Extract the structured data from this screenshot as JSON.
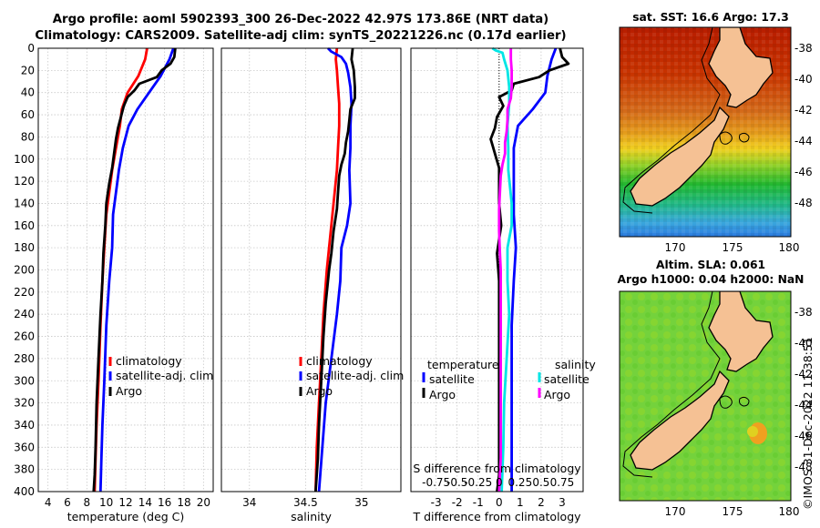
{
  "header": {
    "line1": "Argo profile: aoml 5902393_300 26-Dec-2022 42.97S 173.86E (NRT data)",
    "line2": "Climatology: CARS2009. Satellite-adj clim: synTS_20221226.nc (0.17d earlier)"
  },
  "colors": {
    "climatology": "#ff0000",
    "satellite": "#0000ff",
    "argo": "#000000",
    "sal_satellite": "#00e5e5",
    "sal_argo": "#ff00ff",
    "land": "#f5c194"
  },
  "chart_data": [
    {
      "type": "line",
      "name": "temperature-profile",
      "xlabel": "temperature (deg C)",
      "xlim": [
        3,
        21
      ],
      "xticks": [
        4,
        6,
        8,
        10,
        12,
        14,
        16,
        18,
        20
      ],
      "ylim": [
        0,
        400
      ],
      "yticks": [
        0,
        20,
        40,
        60,
        80,
        100,
        120,
        140,
        160,
        180,
        200,
        220,
        240,
        260,
        280,
        300,
        320,
        340,
        360,
        380,
        400
      ],
      "grid": true,
      "legend": [
        "climatology",
        "satellite-adj. clim",
        "Argo"
      ],
      "series": [
        {
          "name": "climatology",
          "color": "#ff0000",
          "points": [
            [
              14.2,
              0
            ],
            [
              14.0,
              10
            ],
            [
              13.3,
              25
            ],
            [
              12.2,
              40
            ],
            [
              11.6,
              55
            ],
            [
              11.4,
              70
            ],
            [
              11.0,
              90
            ],
            [
              10.6,
              110
            ],
            [
              10.3,
              130
            ],
            [
              10.0,
              150
            ],
            [
              9.8,
              180
            ],
            [
              9.6,
              210
            ],
            [
              9.4,
              250
            ],
            [
              9.2,
              300
            ],
            [
              9.0,
              340
            ],
            [
              8.9,
              370
            ],
            [
              8.8,
              400
            ]
          ]
        },
        {
          "name": "satellite-adj. clim",
          "color": "#0000ff",
          "points": [
            [
              16.9,
              0
            ],
            [
              16.5,
              10
            ],
            [
              15.6,
              25
            ],
            [
              14.4,
              40
            ],
            [
              13.2,
              55
            ],
            [
              12.3,
              70
            ],
            [
              11.7,
              90
            ],
            [
              11.3,
              110
            ],
            [
              11.0,
              130
            ],
            [
              10.7,
              150
            ],
            [
              10.6,
              180
            ],
            [
              10.3,
              210
            ],
            [
              10.0,
              250
            ],
            [
              9.8,
              300
            ],
            [
              9.6,
              340
            ],
            [
              9.5,
              370
            ],
            [
              9.4,
              400
            ]
          ]
        },
        {
          "name": "Argo",
          "color": "#000000",
          "points": [
            [
              17.1,
              0
            ],
            [
              17.0,
              8
            ],
            [
              16.6,
              14
            ],
            [
              15.7,
              20
            ],
            [
              15.2,
              26
            ],
            [
              13.4,
              32
            ],
            [
              12.9,
              38
            ],
            [
              12.2,
              44
            ],
            [
              11.8,
              52
            ],
            [
              11.5,
              62
            ],
            [
              11.2,
              72
            ],
            [
              11.0,
              82
            ],
            [
              10.8,
              95
            ],
            [
              10.6,
              108
            ],
            [
              10.3,
              122
            ],
            [
              10.0,
              140
            ],
            [
              9.9,
              160
            ],
            [
              9.7,
              185
            ],
            [
              9.6,
              210
            ],
            [
              9.4,
              240
            ],
            [
              9.2,
              280
            ],
            [
              9.0,
              320
            ],
            [
              8.9,
              360
            ],
            [
              8.8,
              385
            ],
            [
              8.7,
              400
            ]
          ]
        }
      ]
    },
    {
      "type": "line",
      "name": "salinity-profile",
      "xlabel": "salinity",
      "xlim": [
        33.75,
        35.35
      ],
      "xticks": [
        34,
        34.5,
        35
      ],
      "ylim": [
        0,
        400
      ],
      "grid": true,
      "legend": [
        "climatology",
        "satellite-adj. clim",
        "Argo"
      ],
      "series": [
        {
          "name": "climatology",
          "color": "#ff0000",
          "points": [
            [
              34.78,
              0
            ],
            [
              34.77,
              10
            ],
            [
              34.78,
              20
            ],
            [
              34.79,
              35
            ],
            [
              34.8,
              50
            ],
            [
              34.8,
              70
            ],
            [
              34.79,
              90
            ],
            [
              34.78,
              110
            ],
            [
              34.75,
              140
            ],
            [
              34.72,
              170
            ],
            [
              34.69,
              200
            ],
            [
              34.66,
              240
            ],
            [
              34.64,
              280
            ],
            [
              34.62,
              320
            ],
            [
              34.6,
              360
            ],
            [
              34.59,
              400
            ]
          ]
        },
        {
          "name": "satellite-adj. clim",
          "color": "#0000ff",
          "points": [
            [
              34.7,
              0
            ],
            [
              34.73,
              3
            ],
            [
              34.82,
              8
            ],
            [
              34.86,
              14
            ],
            [
              34.88,
              22
            ],
            [
              34.9,
              35
            ],
            [
              34.91,
              50
            ],
            [
              34.9,
              70
            ],
            [
              34.9,
              90
            ],
            [
              34.89,
              110
            ],
            [
              34.9,
              140
            ],
            [
              34.87,
              160
            ],
            [
              34.82,
              180
            ],
            [
              34.81,
              210
            ],
            [
              34.78,
              240
            ],
            [
              34.73,
              280
            ],
            [
              34.68,
              320
            ],
            [
              34.65,
              360
            ],
            [
              34.62,
              400
            ]
          ]
        },
        {
          "name": "Argo",
          "color": "#000000",
          "points": [
            [
              34.92,
              0
            ],
            [
              34.91,
              10
            ],
            [
              34.93,
              20
            ],
            [
              34.94,
              35
            ],
            [
              34.94,
              45
            ],
            [
              34.9,
              55
            ],
            [
              34.89,
              65
            ],
            [
              34.88,
              75
            ],
            [
              34.86,
              85
            ],
            [
              34.85,
              95
            ],
            [
              34.82,
              105
            ],
            [
              34.8,
              115
            ],
            [
              34.79,
              130
            ],
            [
              34.78,
              145
            ],
            [
              34.75,
              165
            ],
            [
              34.73,
              185
            ],
            [
              34.71,
              200
            ],
            [
              34.68,
              230
            ],
            [
              34.66,
              260
            ],
            [
              34.64,
              300
            ],
            [
              34.62,
              340
            ],
            [
              34.61,
              370
            ],
            [
              34.59,
              400
            ]
          ]
        }
      ]
    },
    {
      "type": "line",
      "name": "difference-profile",
      "xlabel": "T difference from climatology",
      "xlabel_top": "S difference from climatology",
      "xlim": [
        -4.2,
        4.0
      ],
      "xticks": [
        -3,
        -2,
        -1,
        0,
        1,
        2,
        3
      ],
      "xlim_s": [
        -1.05,
        1.0
      ],
      "xticks_s": [
        -0.75,
        -0.5,
        -0.25,
        0,
        0.25,
        0.5,
        0.75
      ],
      "xticklabels_s": [
        "-0.75",
        "-0.5",
        "-0.25",
        "0",
        "0.25",
        "0.5",
        "0.75"
      ],
      "ylim": [
        0,
        400
      ],
      "grid": true,
      "legend_temperature": {
        "title": "temperature",
        "items": [
          "satellite",
          "Argo"
        ]
      },
      "legend_salinity": {
        "title": "salinity",
        "items": [
          "satellite",
          "Argo"
        ]
      },
      "series": [
        {
          "name": "temperature satellite",
          "color": "#0000ff",
          "points": [
            [
              2.7,
              0
            ],
            [
              2.5,
              10
            ],
            [
              2.3,
              25
            ],
            [
              2.2,
              40
            ],
            [
              1.6,
              55
            ],
            [
              0.9,
              70
            ],
            [
              0.7,
              90
            ],
            [
              0.7,
              110
            ],
            [
              0.7,
              130
            ],
            [
              0.7,
              150
            ],
            [
              0.8,
              180
            ],
            [
              0.7,
              210
            ],
            [
              0.6,
              250
            ],
            [
              0.6,
              300
            ],
            [
              0.6,
              340
            ],
            [
              0.6,
              370
            ],
            [
              0.6,
              400
            ]
          ]
        },
        {
          "name": "temperature Argo",
          "color": "#000000",
          "points": [
            [
              2.9,
              0
            ],
            [
              3.0,
              8
            ],
            [
              3.3,
              14
            ],
            [
              2.4,
              20
            ],
            [
              1.9,
              26
            ],
            [
              0.7,
              32
            ],
            [
              0.6,
              38
            ],
            [
              0.0,
              44
            ],
            [
              0.2,
              52
            ],
            [
              -0.1,
              62
            ],
            [
              -0.2,
              72
            ],
            [
              -0.4,
              82
            ],
            [
              -0.2,
              95
            ],
            [
              0.0,
              108
            ],
            [
              0.0,
              122
            ],
            [
              0.0,
              140
            ],
            [
              0.1,
              160
            ],
            [
              -0.1,
              185
            ],
            [
              0.0,
              210
            ],
            [
              0.0,
              240
            ],
            [
              0.0,
              280
            ],
            [
              0.0,
              320
            ],
            [
              0.0,
              360
            ],
            [
              0.0,
              385
            ],
            [
              -0.1,
              400
            ]
          ]
        },
        {
          "name": "salinity satellite",
          "color": "#00e5e5",
          "points": [
            [
              -0.08,
              0
            ],
            [
              -0.04,
              2
            ],
            [
              0.04,
              4
            ],
            [
              0.06,
              10
            ],
            [
              0.1,
              20
            ],
            [
              0.12,
              35
            ],
            [
              0.12,
              50
            ],
            [
              0.1,
              70
            ],
            [
              0.11,
              90
            ],
            [
              0.11,
              110
            ],
            [
              0.15,
              140
            ],
            [
              0.15,
              160
            ],
            [
              0.1,
              180
            ],
            [
              0.1,
              210
            ],
            [
              0.12,
              240
            ],
            [
              0.09,
              280
            ],
            [
              0.06,
              320
            ],
            [
              0.05,
              360
            ],
            [
              0.03,
              400
            ]
          ]
        },
        {
          "name": "salinity Argo",
          "color": "#ff00ff",
          "points": [
            [
              0.14,
              0
            ],
            [
              0.14,
              10
            ],
            [
              0.15,
              20
            ],
            [
              0.15,
              35
            ],
            [
              0.14,
              45
            ],
            [
              0.1,
              55
            ],
            [
              0.1,
              65
            ],
            [
              0.09,
              75
            ],
            [
              0.07,
              85
            ],
            [
              0.07,
              95
            ],
            [
              0.04,
              105
            ],
            [
              0.02,
              115
            ],
            [
              0.01,
              130
            ],
            [
              0.0,
              145
            ],
            [
              0.0,
              165
            ],
            [
              0.01,
              185
            ],
            [
              0.02,
              200
            ],
            [
              0.02,
              230
            ],
            [
              0.02,
              260
            ],
            [
              0.02,
              300
            ],
            [
              0.02,
              340
            ],
            [
              0.02,
              370
            ],
            [
              0.0,
              400
            ]
          ]
        }
      ]
    }
  ],
  "maps": {
    "sst": {
      "title": "sat. SST: 16.6 Argo: 17.3",
      "xticks": [
        "170",
        "175",
        "180"
      ],
      "yticks": [
        "-38",
        "-40",
        "-42",
        "-44",
        "-46",
        "-48"
      ]
    },
    "sla": {
      "title_line1": "Altim. SLA: 0.061",
      "title_line2": "Argo h1000: 0.04 h2000: NaN",
      "xticks": [
        "170",
        "175",
        "180"
      ],
      "yticks": [
        "-38",
        "-40",
        "-42",
        "-44",
        "-46",
        "-48"
      ]
    }
  },
  "footer": {
    "copyright": "©IMOS 31-Dec-2022 11:38:51"
  }
}
